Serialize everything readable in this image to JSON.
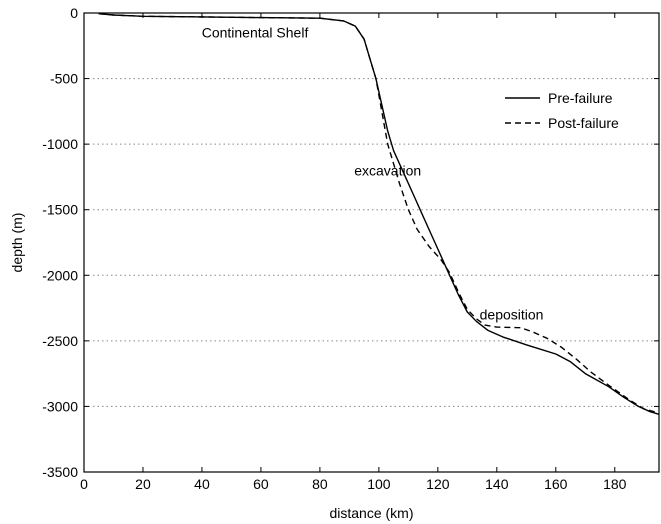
{
  "chart_data": {
    "type": "line",
    "xlabel": "distance (km)",
    "ylabel": "depth (m)",
    "xlim": [
      0,
      195
    ],
    "ylim": [
      -3500,
      0
    ],
    "xticks": [
      0,
      20,
      40,
      60,
      80,
      100,
      120,
      140,
      160,
      180
    ],
    "yticks": [
      0,
      -500,
      -1000,
      -1500,
      -2000,
      -2500,
      -3000,
      -3500
    ],
    "grid": "horizontal dotted",
    "legend_position": "top-right",
    "series": [
      {
        "name": "Pre-failure",
        "style": "solid",
        "color": "#000000",
        "points": [
          [
            5,
            -5
          ],
          [
            10,
            -15
          ],
          [
            20,
            -25
          ],
          [
            40,
            -30
          ],
          [
            60,
            -35
          ],
          [
            80,
            -40
          ],
          [
            88,
            -60
          ],
          [
            92,
            -100
          ],
          [
            95,
            -200
          ],
          [
            97,
            -350
          ],
          [
            99,
            -500
          ],
          [
            101,
            -700
          ],
          [
            103,
            -900
          ],
          [
            105,
            -1050
          ],
          [
            108,
            -1200
          ],
          [
            112,
            -1400
          ],
          [
            115,
            -1550
          ],
          [
            118,
            -1700
          ],
          [
            121,
            -1850
          ],
          [
            124,
            -2000
          ],
          [
            127,
            -2150
          ],
          [
            130,
            -2280
          ],
          [
            133,
            -2350
          ],
          [
            137,
            -2420
          ],
          [
            142,
            -2470
          ],
          [
            150,
            -2530
          ],
          [
            160,
            -2600
          ],
          [
            165,
            -2660
          ],
          [
            170,
            -2750
          ],
          [
            178,
            -2850
          ],
          [
            183,
            -2930
          ],
          [
            188,
            -3000
          ],
          [
            192,
            -3040
          ],
          [
            195,
            -3060
          ]
        ]
      },
      {
        "name": "Post-failure",
        "style": "dashed",
        "color": "#000000",
        "points": [
          [
            5,
            -5
          ],
          [
            10,
            -15
          ],
          [
            20,
            -25
          ],
          [
            40,
            -30
          ],
          [
            60,
            -35
          ],
          [
            80,
            -40
          ],
          [
            88,
            -60
          ],
          [
            92,
            -100
          ],
          [
            95,
            -200
          ],
          [
            97,
            -350
          ],
          [
            99,
            -500
          ],
          [
            101,
            -750
          ],
          [
            103,
            -1000
          ],
          [
            105,
            -1150
          ],
          [
            107,
            -1300
          ],
          [
            110,
            -1500
          ],
          [
            113,
            -1650
          ],
          [
            117,
            -1780
          ],
          [
            121,
            -1880
          ],
          [
            124,
            -1980
          ],
          [
            127,
            -2130
          ],
          [
            130,
            -2260
          ],
          [
            133,
            -2330
          ],
          [
            136,
            -2380
          ],
          [
            140,
            -2395
          ],
          [
            148,
            -2400
          ],
          [
            152,
            -2430
          ],
          [
            157,
            -2480
          ],
          [
            162,
            -2550
          ],
          [
            167,
            -2640
          ],
          [
            172,
            -2740
          ],
          [
            178,
            -2840
          ],
          [
            185,
            -2950
          ],
          [
            190,
            -3020
          ],
          [
            195,
            -3050
          ]
        ]
      }
    ],
    "annotations": [
      {
        "text": "Continental Shelf",
        "x": 58,
        "y": -150
      },
      {
        "text": "excavation",
        "x": 103,
        "y": -1200
      },
      {
        "text": "deposition",
        "x": 145,
        "y": -2300
      }
    ]
  }
}
